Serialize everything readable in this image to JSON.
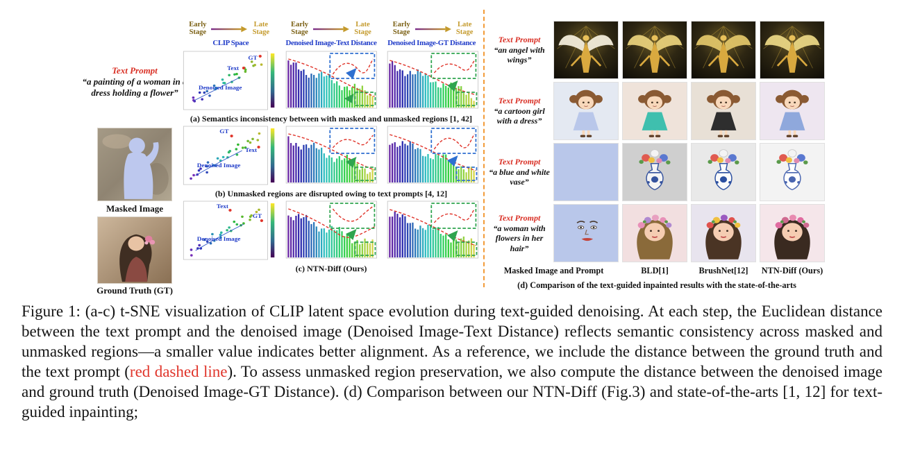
{
  "colors": {
    "accent_red": "#d93025",
    "plot_title_blue": "#1f3bc8",
    "divider_orange": "#f29b38",
    "stage_purple": "#7b2d8e",
    "stage_gold": "#c49a2c",
    "mask_lavender": "#b9c7ea"
  },
  "figure": {
    "left": {
      "prompt_label": "Text Prompt",
      "prompt_text": "“a painting of a woman in a dress holding a flower”",
      "masked_label": "Masked Image",
      "gt_label": "Ground Truth (GT)"
    },
    "stages": {
      "early": "Early Stage",
      "late": "Late Stage"
    },
    "plot_columns": [
      "CLIP Space",
      "Denoised Image-Text Distance",
      "Denoised Image-GT Distance"
    ],
    "plot_rows": [
      {
        "caption": "(a) Semantics inconsistency between with masked and unmasked regions [1, 42]",
        "labels": {
          "gt": "GT",
          "text": "Text",
          "denoised": "Denoised Image"
        }
      },
      {
        "caption": "(b) Unmasked regions are disrupted owing to text prompts [4, 12]",
        "labels": {
          "gt": "GT",
          "text": "Text",
          "denoised": "Denoised Image"
        }
      },
      {
        "caption": "(c) NTN-Diff (Ours)",
        "labels": {
          "gt": "GT",
          "text": "Text",
          "denoised": "Denoised Image"
        }
      }
    ],
    "right": {
      "rows": [
        {
          "prompt_label": "Text Prompt",
          "prompt_text": "“an angel with wings”"
        },
        {
          "prompt_label": "Text Prompt",
          "prompt_text": "“a cartoon girl with a dress”"
        },
        {
          "prompt_label": "Text Prompt",
          "prompt_text": "“a blue and white vase”"
        },
        {
          "prompt_label": "Text Prompt",
          "prompt_text": "“a woman with flowers in her hair”"
        }
      ],
      "column_labels": [
        "Masked Image and Prompt",
        "BLD[1]",
        "BrushNet[12]",
        "NTN-Diff (Ours)"
      ],
      "caption": "(d) Comparison of the text-guided inpainted results with the state-of-the-arts"
    }
  },
  "caption": {
    "part1": "Figure 1: (a-c) t-SNE visualization of CLIP latent space evolution during text-guided denoising. At each step, the Euclidean distance between the text prompt and the denoised image (Denoised Image-Text Distance) reflects semantic consistency across masked and unmasked regions—a smaller value indicates better alignment. As a reference, we include the distance between the ground truth and the text prompt (",
    "red": "red dashed line",
    "part2": "). To assess unmasked region preservation, we also compute the distance between the denoised image and ground truth (Denoised Image-GT Distance). (d) Comparison between our NTN-Diff (Fig.3) and state-of-the-arts [1, 12] for text-guided inpainting;"
  }
}
